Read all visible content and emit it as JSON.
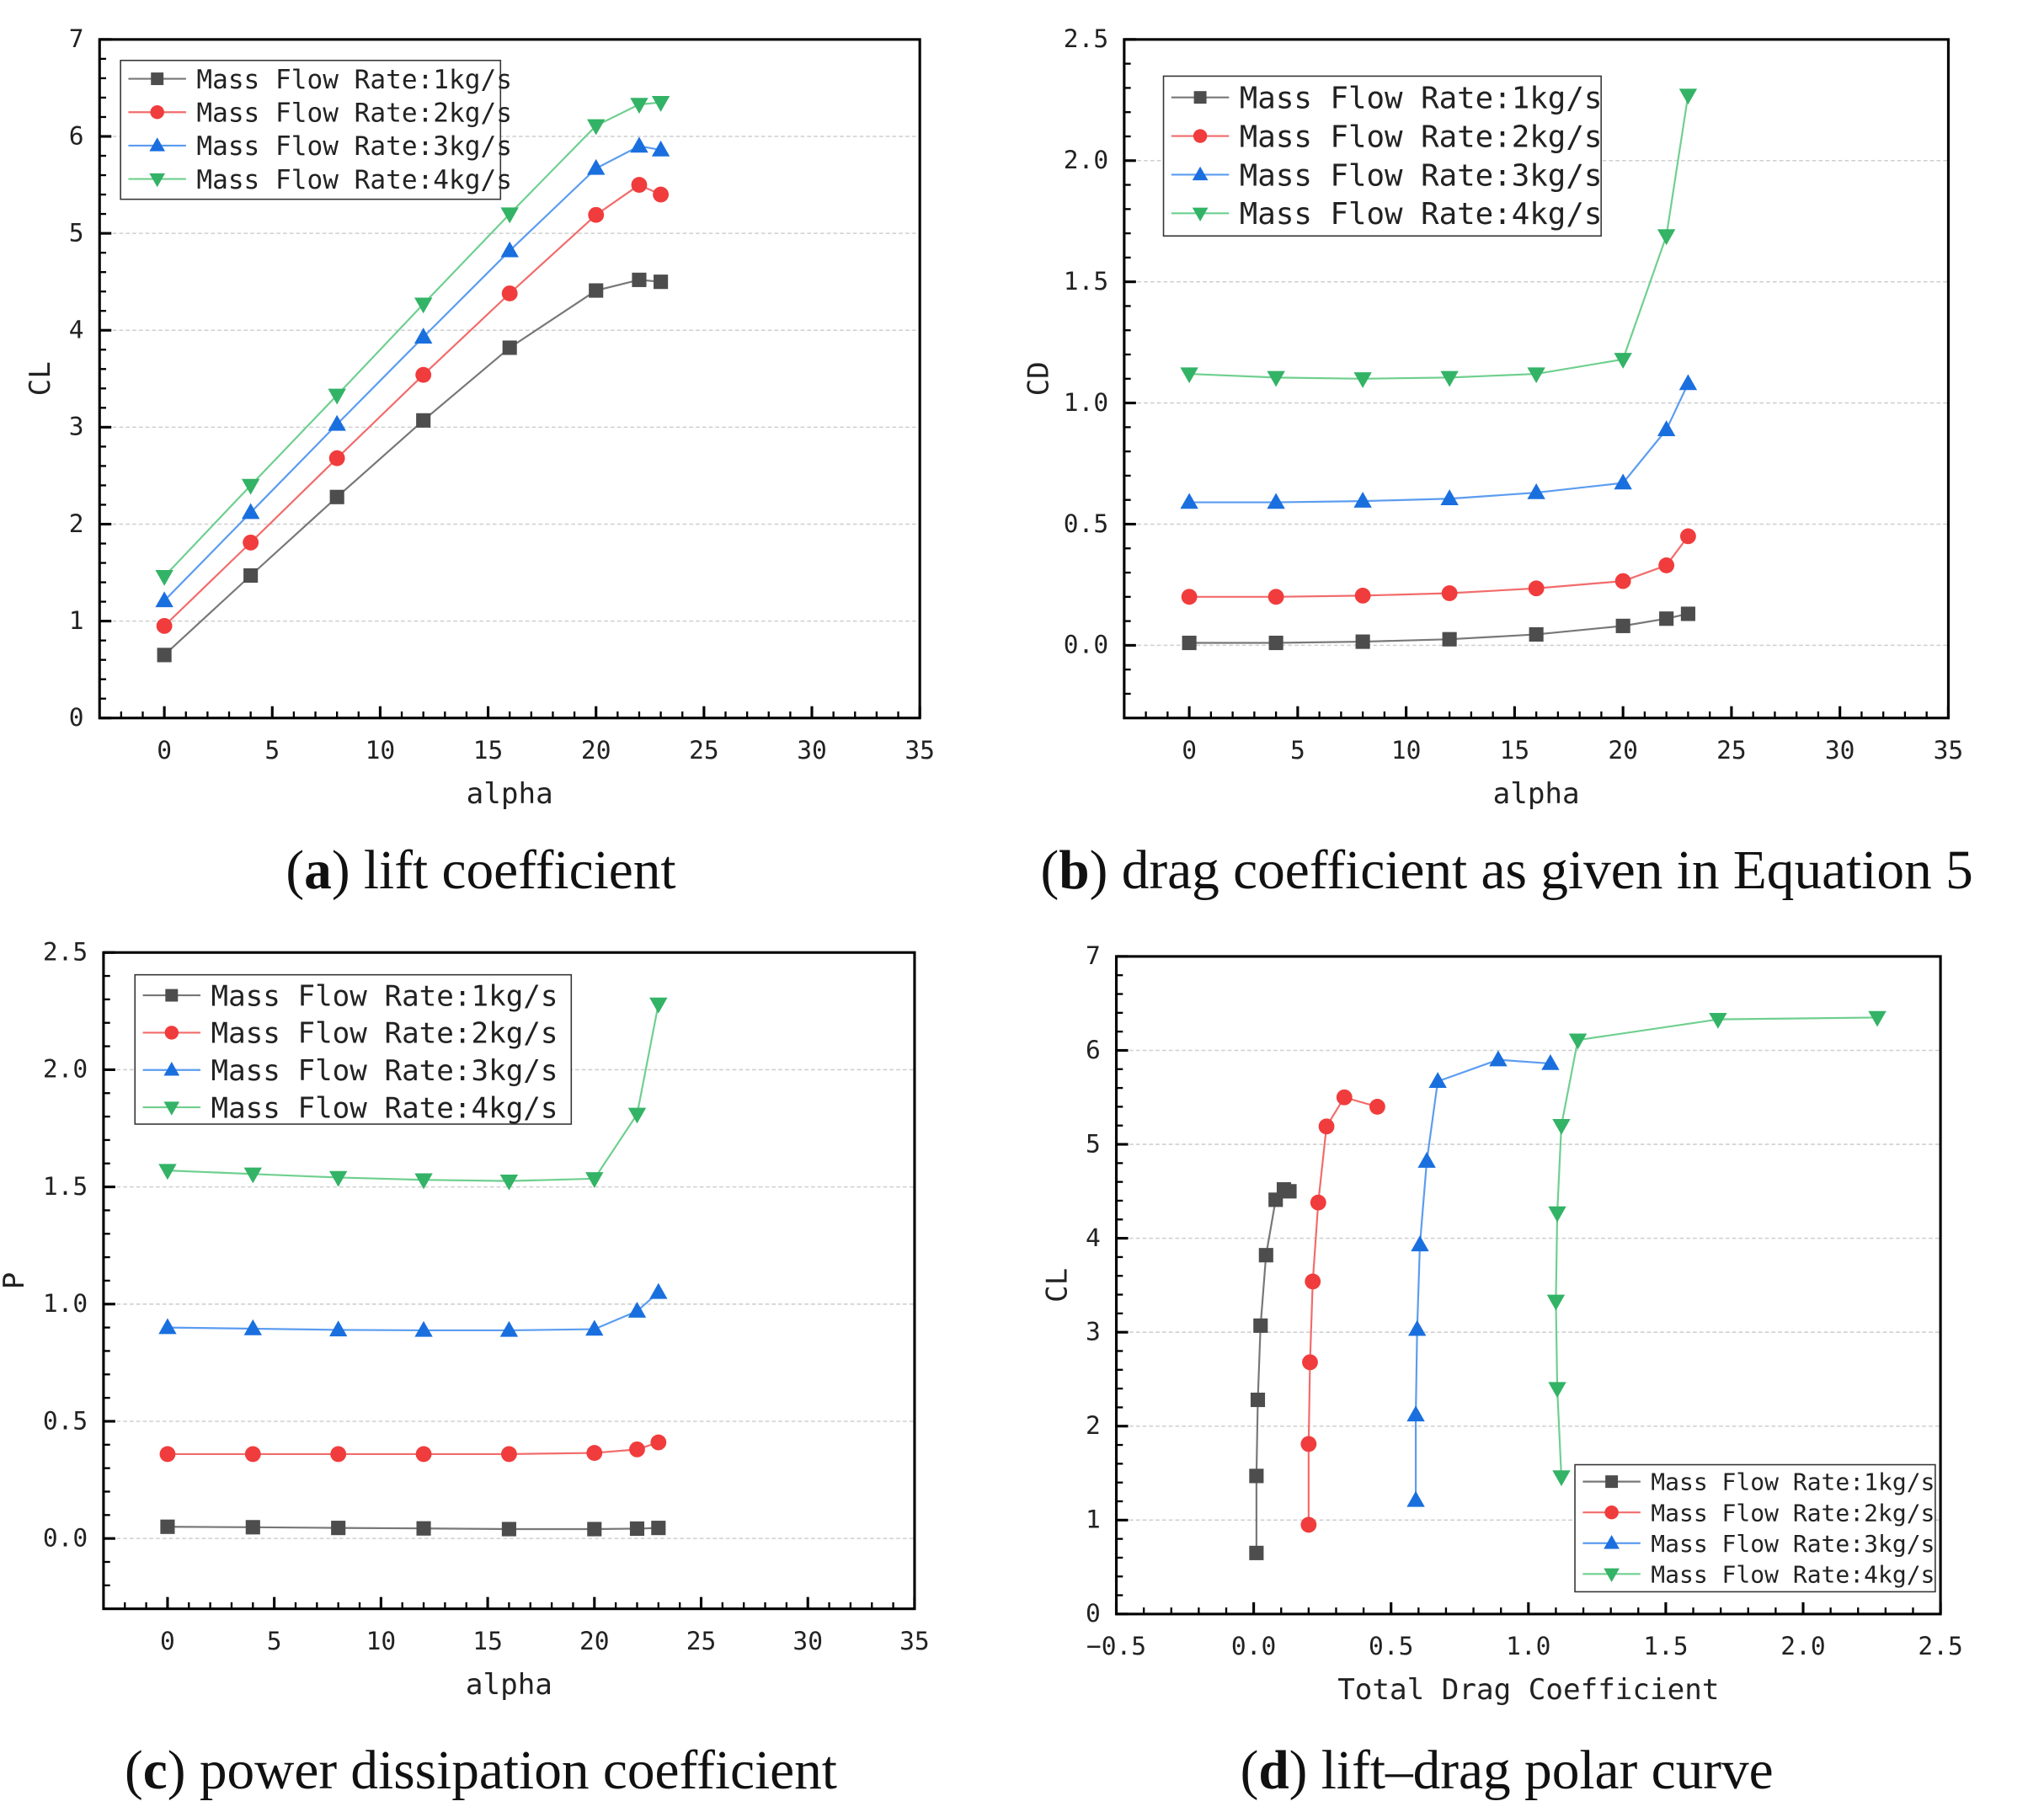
{
  "colors": {
    "s1": "#4d4d4d",
    "s2": "#f03c3c",
    "s3": "#1a6fdf",
    "s4": "#33b366"
  },
  "chart_data": [
    {
      "id": "a",
      "type": "line",
      "title": "lift coefficient",
      "caption_label": "a",
      "xlabel": "alpha",
      "ylabel": "CL",
      "xlim": [
        -3,
        35
      ],
      "ylim": [
        0,
        7
      ],
      "xticks": [
        0,
        5,
        10,
        15,
        20,
        25,
        30,
        35
      ],
      "yticks": [
        0,
        1,
        2,
        3,
        4,
        5,
        6,
        7
      ],
      "ytick_labels": [
        "0",
        "1",
        "2",
        "3",
        "4",
        "5",
        "6",
        "7"
      ],
      "xtick_labels": [
        "0",
        "5",
        "10",
        "15",
        "20",
        "25",
        "30",
        "35"
      ],
      "grid": true,
      "legend": "top-left",
      "x": [
        0,
        4,
        8,
        12,
        16,
        20,
        22,
        23
      ],
      "series": [
        {
          "name": "Mass Flow Rate:1kg/s",
          "marker": "square",
          "y": [
            0.65,
            1.47,
            2.28,
            3.07,
            3.82,
            4.41,
            4.52,
            4.5
          ]
        },
        {
          "name": "Mass Flow Rate:2kg/s",
          "marker": "circle",
          "y": [
            0.95,
            1.81,
            2.68,
            3.54,
            4.38,
            5.19,
            5.5,
            5.4
          ]
        },
        {
          "name": "Mass Flow Rate:3kg/s",
          "marker": "triangle-up",
          "y": [
            1.21,
            2.12,
            3.03,
            3.93,
            4.82,
            5.67,
            5.9,
            5.86
          ]
        },
        {
          "name": "Mass Flow Rate:4kg/s",
          "marker": "triangle-down",
          "y": [
            1.46,
            2.4,
            3.33,
            4.27,
            5.2,
            6.11,
            6.33,
            6.35
          ]
        }
      ]
    },
    {
      "id": "b",
      "type": "line",
      "title": "drag coefficient as given in Equation 5",
      "caption_label": "b",
      "xlabel": "alpha",
      "ylabel": "CD",
      "xlim": [
        -3,
        35
      ],
      "ylim": [
        -0.3,
        2.5
      ],
      "xticks": [
        0,
        5,
        10,
        15,
        20,
        25,
        30,
        35
      ],
      "yticks": [
        0,
        0.5,
        1,
        1.5,
        2,
        2.5
      ],
      "ytick_labels": [
        "0.0",
        "0.5",
        "1.0",
        "1.5",
        "2.0",
        "2.5"
      ],
      "xtick_labels": [
        "0",
        "5",
        "10",
        "15",
        "20",
        "25",
        "30",
        "35"
      ],
      "grid": true,
      "legend": "top-left",
      "x": [
        0,
        4,
        8,
        12,
        16,
        20,
        22,
        23
      ],
      "series": [
        {
          "name": "Mass Flow Rate:1kg/s",
          "marker": "square",
          "y": [
            0.01,
            0.01,
            0.015,
            0.025,
            0.045,
            0.08,
            0.11,
            0.13
          ]
        },
        {
          "name": "Mass Flow Rate:2kg/s",
          "marker": "circle",
          "y": [
            0.2,
            0.2,
            0.205,
            0.215,
            0.235,
            0.265,
            0.33,
            0.45
          ]
        },
        {
          "name": "Mass Flow Rate:3kg/s",
          "marker": "triangle-up",
          "y": [
            0.59,
            0.59,
            0.595,
            0.605,
            0.63,
            0.67,
            0.89,
            1.08
          ]
        },
        {
          "name": "Mass Flow Rate:4kg/s",
          "marker": "triangle-down",
          "y": [
            1.12,
            1.105,
            1.1,
            1.105,
            1.12,
            1.18,
            1.69,
            2.27
          ]
        }
      ]
    },
    {
      "id": "c",
      "type": "line",
      "title": "power dissipation coefficient",
      "caption_label": "c",
      "xlabel": "alpha",
      "ylabel": "P",
      "xlim": [
        -3,
        35
      ],
      "ylim": [
        -0.3,
        2.5
      ],
      "xticks": [
        0,
        5,
        10,
        15,
        20,
        25,
        30,
        35
      ],
      "yticks": [
        0,
        0.5,
        1,
        1.5,
        2,
        2.5
      ],
      "ytick_labels": [
        "0.0",
        "0.5",
        "1.0",
        "1.5",
        "2.0",
        "2.5"
      ],
      "xtick_labels": [
        "0",
        "5",
        "10",
        "15",
        "20",
        "25",
        "30",
        "35"
      ],
      "grid": true,
      "legend": "top-left",
      "x": [
        0,
        4,
        8,
        12,
        16,
        20,
        22,
        23
      ],
      "series": [
        {
          "name": "Mass Flow Rate:1kg/s",
          "marker": "square",
          "y": [
            0.05,
            0.048,
            0.045,
            0.043,
            0.04,
            0.04,
            0.042,
            0.045
          ]
        },
        {
          "name": "Mass Flow Rate:2kg/s",
          "marker": "circle",
          "y": [
            0.36,
            0.36,
            0.36,
            0.36,
            0.36,
            0.365,
            0.38,
            0.41
          ]
        },
        {
          "name": "Mass Flow Rate:3kg/s",
          "marker": "triangle-up",
          "y": [
            0.9,
            0.895,
            0.89,
            0.888,
            0.888,
            0.893,
            0.97,
            1.05
          ]
        },
        {
          "name": "Mass Flow Rate:4kg/s",
          "marker": "triangle-down",
          "y": [
            1.57,
            1.555,
            1.54,
            1.53,
            1.525,
            1.535,
            1.81,
            2.28
          ]
        }
      ]
    },
    {
      "id": "d",
      "type": "line",
      "title": "lift–drag polar curve",
      "caption_label": "d",
      "xlabel": "Total Drag Coefficient",
      "ylabel": "CL",
      "xlim": [
        -0.5,
        2.5
      ],
      "ylim": [
        0,
        7
      ],
      "xticks": [
        -0.5,
        0,
        0.5,
        1,
        1.5,
        2,
        2.5
      ],
      "xtick_labels": [
        "−0.5",
        "0.0",
        "0.5",
        "1.0",
        "1.5",
        "2.0",
        "2.5"
      ],
      "yticks": [
        0,
        1,
        2,
        3,
        4,
        5,
        6,
        7
      ],
      "ytick_labels": [
        "0",
        "1",
        "2",
        "3",
        "4",
        "5",
        "6",
        "7"
      ],
      "grid": true,
      "legend": "bottom-right",
      "series": [
        {
          "name": "Mass Flow Rate:1kg/s",
          "marker": "square",
          "x": [
            0.01,
            0.01,
            0.015,
            0.025,
            0.045,
            0.08,
            0.11,
            0.13
          ],
          "y": [
            0.65,
            1.47,
            2.28,
            3.07,
            3.82,
            4.41,
            4.52,
            4.5
          ]
        },
        {
          "name": "Mass Flow Rate:2kg/s",
          "marker": "circle",
          "x": [
            0.2,
            0.2,
            0.205,
            0.215,
            0.235,
            0.265,
            0.33,
            0.45
          ],
          "y": [
            0.95,
            1.81,
            2.68,
            3.54,
            4.38,
            5.19,
            5.5,
            5.4
          ]
        },
        {
          "name": "Mass Flow Rate:3kg/s",
          "marker": "triangle-up",
          "x": [
            0.59,
            0.59,
            0.595,
            0.605,
            0.63,
            0.67,
            0.89,
            1.08
          ],
          "y": [
            1.21,
            2.12,
            3.03,
            3.93,
            4.82,
            5.67,
            5.9,
            5.86
          ]
        },
        {
          "name": "Mass Flow Rate:4kg/s",
          "marker": "triangle-down",
          "x": [
            1.12,
            1.105,
            1.1,
            1.105,
            1.12,
            1.18,
            1.69,
            2.27
          ],
          "y": [
            1.46,
            2.4,
            3.33,
            4.27,
            5.2,
            6.11,
            6.33,
            6.35
          ]
        }
      ]
    }
  ]
}
